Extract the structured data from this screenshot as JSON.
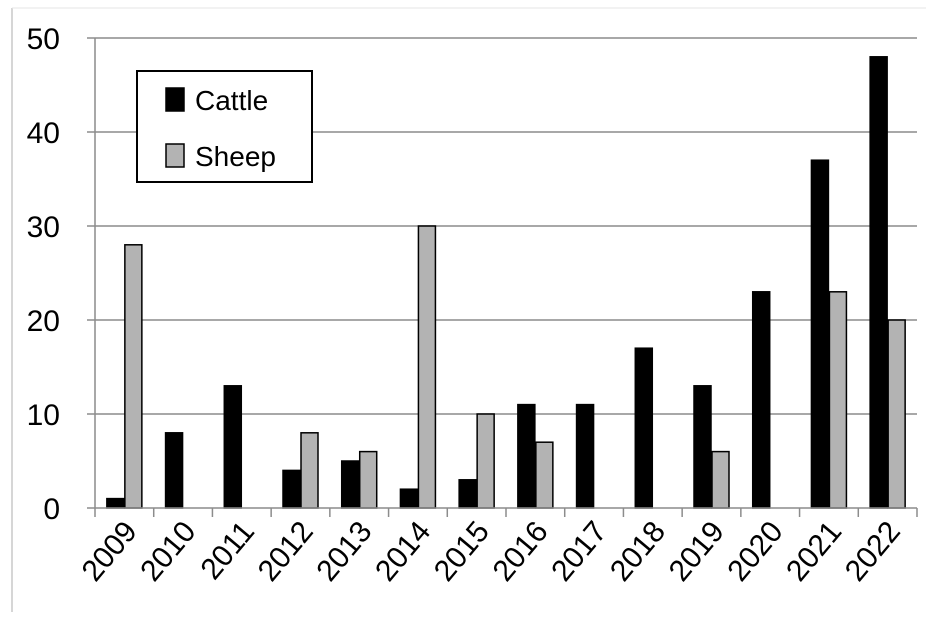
{
  "chart_data": {
    "type": "bar",
    "categories": [
      "2009",
      "2010",
      "2011",
      "2012",
      "2013",
      "2014",
      "2015",
      "2016",
      "2017",
      "2018",
      "2019",
      "2020",
      "2021",
      "2022"
    ],
    "series": [
      {
        "name": "Cattle",
        "color": "#000000",
        "values": [
          1,
          8,
          13,
          4,
          5,
          2,
          3,
          11,
          11,
          17,
          13,
          23,
          37,
          48
        ]
      },
      {
        "name": "Sheep",
        "color": "#b3b3b3",
        "values": [
          28,
          0,
          0,
          8,
          6,
          30,
          10,
          7,
          0,
          0,
          6,
          0,
          23,
          20
        ]
      }
    ],
    "yticks": [
      "0",
      "10",
      "20",
      "30",
      "40",
      "50"
    ],
    "ylim": [
      0,
      50
    ],
    "grid": true,
    "legend": "top-left",
    "xlabel": "",
    "ylabel": "",
    "title": ""
  }
}
